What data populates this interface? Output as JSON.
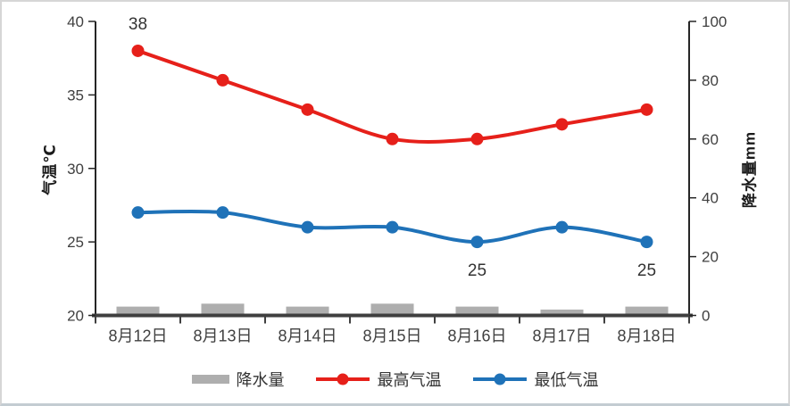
{
  "chart_data": {
    "type": "combo",
    "categories": [
      "8月12日",
      "8月13日",
      "8月14日",
      "8月15日",
      "8月16日",
      "8月17日",
      "8月18日"
    ],
    "series": [
      {
        "name": "降水量",
        "type": "bar",
        "axis": "right",
        "color": "#aeaeae",
        "values": [
          3,
          4,
          3,
          4,
          3,
          2,
          3
        ]
      },
      {
        "name": "最高气温",
        "type": "line",
        "axis": "left",
        "color": "#e6201a",
        "values": [
          38,
          36,
          34,
          32,
          32,
          33,
          34
        ]
      },
      {
        "name": "最低气温",
        "type": "line",
        "axis": "left",
        "color": "#1f72b8",
        "values": [
          27,
          27,
          26,
          26,
          25,
          26,
          25
        ]
      }
    ],
    "left_axis": {
      "label": "气温℃",
      "min": 20,
      "max": 40,
      "ticks": [
        40,
        35,
        30,
        25,
        20
      ]
    },
    "right_axis": {
      "label": "降水量mm",
      "min": 0,
      "max": 100,
      "ticks": [
        100,
        80,
        60,
        40,
        20,
        0
      ]
    },
    "data_labels": [
      {
        "series": 1,
        "index": 0,
        "text": "38",
        "position": "above"
      },
      {
        "series": 2,
        "index": 4,
        "text": "25",
        "position": "below"
      },
      {
        "series": 2,
        "index": 6,
        "text": "25",
        "position": "below"
      }
    ],
    "legend": {
      "position": "bottom",
      "items": [
        "降水量",
        "最高气温",
        "最低气温"
      ]
    },
    "grid": false,
    "smooth_lines": true,
    "colors": {
      "axis_line": "#3f3f3f",
      "axis_stroke": "#262626",
      "tick_text": "#404040",
      "data_label_text": "#333333"
    }
  }
}
